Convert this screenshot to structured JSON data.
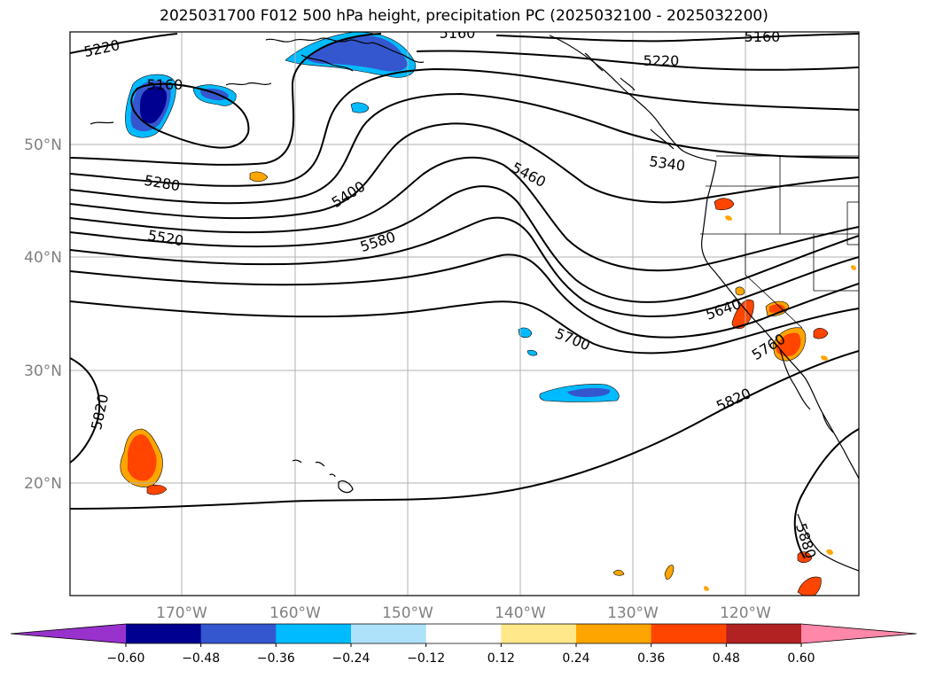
{
  "title": "2025031700 F012 500 hPa height, precipitation PC (2025032100 - 2025032200)",
  "lat_labels": [
    "50°N",
    "40°N",
    "30°N",
    "20°N"
  ],
  "lon_labels": [
    "170°W",
    "160°W",
    "150°W",
    "140°W",
    "130°W",
    "120°W"
  ],
  "contour_labels": [
    "5220",
    "5160",
    "5160",
    "5160",
    "5220",
    "5280",
    "5340",
    "5400",
    "5460",
    "5520",
    "5580",
    "5640",
    "5700",
    "5760",
    "5820",
    "5820",
    "5880"
  ],
  "colorbar": {
    "ticks": [
      "−0.60",
      "−0.48",
      "−0.36",
      "−0.24",
      "−0.12",
      "0.12",
      "0.24",
      "0.36",
      "0.48",
      "0.60"
    ],
    "colors": [
      "#9932cc",
      "#000090",
      "#3457cf",
      "#00bbff",
      "#aee2fa",
      "#ffffff",
      "#ffe88a",
      "#ffa500",
      "#ff4500",
      "#b22222",
      "#ff88aa"
    ]
  },
  "colors": {
    "neg_strong": "#000090",
    "neg_mid": "#3457cf",
    "neg_light": "#00bbff",
    "pos_mid": "#ff4500",
    "pos_light": "#ffa500",
    "grid": "#b0b0b0"
  }
}
